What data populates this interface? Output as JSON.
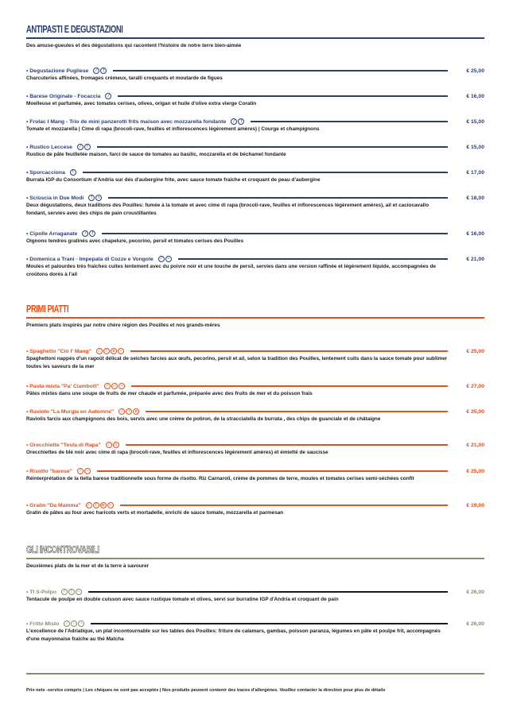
{
  "sections": [
    {
      "title": "Antipasti e Degustazioni",
      "subtitle": "Des amuse-gueules et des dégustations qui racontent l'histoire de notre terre bien-aimée",
      "color": "#2b3f6b",
      "items": [
        {
          "name": "• Degustazione Pugliese",
          "icons": [
            "leaf-icon",
            "allergen-icon"
          ],
          "price": "€ 25,00",
          "description": "Charcuteries affinées, fromages crémeux, taralli croquants et moutarde de figues"
        },
        {
          "name": "• Barese Originale - Focaccia",
          "icons": [
            "leaf-icon"
          ],
          "price": "€ 16,00",
          "description": "Moelleuse et parfumée, avec tomates cerises, olives, origan et huile d'olive extra vierge Coratin"
        },
        {
          "name": "• Frolac I Mang - Trio de mini panzerotti frits maison avec mozzarella fondante",
          "icons": [
            "leaf-icon",
            "allergen-icon"
          ],
          "price": "€ 15,00",
          "description": "Tomate et mozzarella | Cime di rapa (brocoli-rave, feuilles et inflorescences légèrement amères) | Courge et champignons"
        },
        {
          "name": "• Rustico Leccese",
          "icons": [
            "leaf-icon",
            "allergen-icon"
          ],
          "price": "€ 15,00",
          "description": "Rustico de pâte feuilletée maison, farci de sauce de tomates au basilic, mozzarella et de béchamel fondante"
        },
        {
          "name": "• Sporcacciona",
          "icons": [
            "allergen-icon"
          ],
          "price": "€ 17,00",
          "description": "Burrata IGP du Consortium d'Andria sur dés d'aubergine frite, avec sauce tomate fraîche et croquant de peau d'aubergine"
        },
        {
          "name": "• Sciùscia in Due Modi",
          "icons": [
            "allergen-icon",
            "dairy-icon"
          ],
          "price": "€ 18,00",
          "description": "Deux dégustations, deux traditions des Pouilles: fumée à la tomate et avec cime di rapa (brocoli-rave, feuilles et inflorescences légèrement amères), ail et caciocavallo fondant, servies avec des chips de pain croustillantes"
        },
        {
          "name": "• Cipolle Arraganate",
          "icons": [
            "leaf-icon",
            "allergen-icon"
          ],
          "price": "€ 16,00",
          "description": "Oignons tendres gratinés avec chapelure, pecorino, persil et tomates cerises des Pouilles"
        },
        {
          "name": "• Domenica a Trani - Impepata di Cozze e Vongole",
          "icons": [
            "leaf-icon",
            "fish-icon"
          ],
          "price": "€ 21,00",
          "description": "Moules et palourdes très fraîches cuites lentement avec du poivre noir et une touche de persil, servies dans une version raffinée et légèrement liquide, accompagnées de croûtons dorés à l'ail"
        }
      ]
    },
    {
      "title": "Primi Piatti",
      "subtitle": "Premiers plats inspirés par notre chère région des Pouilles et nos grands-mères",
      "color": "#e0531f",
      "items": [
        {
          "name": "• Spaghetto \"Cìò I' Mang\"",
          "icons": [
            "leaf-icon",
            "allergen-icon",
            "egg-icon",
            "fish-icon"
          ],
          "price": "€ 25,00",
          "description": "Spaghettoni nappés d'un ragoût délicat de seiches farcies aux œufs, pecorino, persil et ail, selon la tradition des Pouilles, lentement cuits dans la sauce tomate pour sublimer toutes les saveurs de la mer"
        },
        {
          "name": "• Pasta mista \"Pa' Ciambott\"",
          "icons": [
            "leaf-icon",
            "shellfish-icon",
            "fish-icon"
          ],
          "price": "€ 27,00",
          "description": "Pâtes mixtes dans une soupe de fruits de mer chaude et parfumée, préparée avec des fruits de mer et du poisson frais"
        },
        {
          "name": "• Raviolo \"La Murgia en Automne\"",
          "icons": [
            "leaf-icon",
            "allergen-icon",
            "egg-icon"
          ],
          "price": "€ 25,00",
          "description": "Raviolis farcis aux champignons des bois, servis avec une crème de potiron, de la stracciatella de burrata , des chips de guanciale et de châtaigne"
        },
        {
          "name": "• Orecchiette \"Testa di Rapa\"",
          "icons": [
            "leaf-icon",
            "dairy-icon"
          ],
          "price": "€ 21,00",
          "description": "Orecchiettes de blé noir avec cime di rapa (brocoli-rave, feuilles et inflorescences légèrement amères) et émietté de saucisse"
        },
        {
          "name": "• Risotto \"barese\"",
          "icons": [
            "leaf-icon",
            "fish-icon"
          ],
          "price": "€ 25,00",
          "description": "Réinterprétation de la tiella barese traditionnelle sous forme de risotto. Riz Carnaroli, crème de pommes de terre, moules et tomates cerises semi-séchées confit"
        },
        {
          "name": "• Gratin \"Da Mamma\"",
          "icons": [
            "leaf-icon",
            "allergen-icon",
            "egg-icon",
            "dairy-icon"
          ],
          "price": "€ 19,00",
          "description": "Gratin de pâtes au four avec haricots verts et mortadelle, enrichi de sauce tomate, mozzarella et parmesan"
        }
      ]
    },
    {
      "title": "Gli Incontrovabili",
      "subtitle": "Deuxièmes plats de la mer et de la terre à savourer",
      "color": "#8a8a6e",
      "items": [
        {
          "name": "• TI S-Polpo",
          "icons": [
            "leaf-icon",
            "allergen-icon",
            "fish-icon"
          ],
          "price": "€ 26,00",
          "description": "Tentacule de poulpe en double cuisson avec sauce rustique tomate et olives, servi sur burratine IGP d'Andria et croquant de pain"
        },
        {
          "name": "• Fritto Misto",
          "icons": [
            "leaf-icon",
            "shellfish-icon",
            "fish-icon"
          ],
          "price": "€ 26,00",
          "description": "L'excellence de l'Adriatique, un plat incontournable sur les tables des Pouilles: friture de calamars, gambas, poisson paranza, légumes en pâte et poulpe frit, accompagnés d'une mayonnaise fraîche au thé Matcha"
        }
      ]
    }
  ],
  "footer": {
    "text": "Prix nets -service compris | Les chèques ne sont pas acceptés | Nos produits peuvent contenir des traces d'allergènes. Veuillez contacter la direction pour plus de détails"
  },
  "icon_glyphs": {
    "leaf-icon": "⁄",
    "allergen-icon": "!",
    "egg-icon": "o",
    "fish-icon": "~",
    "dairy-icon": "≈",
    "shellfish-icon": "∩"
  }
}
